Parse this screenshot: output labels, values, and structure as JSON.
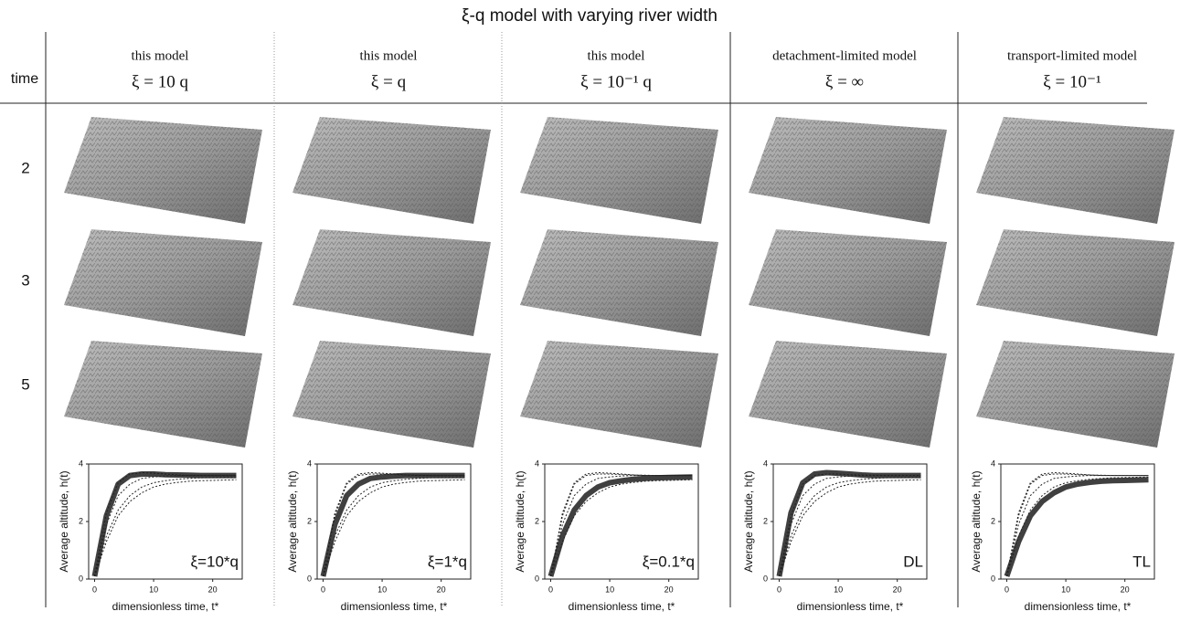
{
  "title": "ξ-q model with varying river width",
  "time_label": "time",
  "columns": [
    {
      "model": "this model",
      "xi": "ξ = 10 q"
    },
    {
      "model": "this model",
      "xi": "ξ = q"
    },
    {
      "model": "this model",
      "xi": "ξ = 10⁻¹ q"
    },
    {
      "model": "detachment-limited model",
      "xi": "ξ = ∞"
    },
    {
      "model": "transport-limited model",
      "xi": "ξ = 10⁻¹"
    }
  ],
  "rows": [
    "2",
    "3",
    "5"
  ],
  "chart_data": [
    {
      "type": "line",
      "xlabel": "dimensionless time, t*",
      "ylabel": "Average altitude, h(t)",
      "annotation": "ξ=10*q",
      "x": [
        0,
        2,
        4,
        6,
        8,
        10,
        12,
        14,
        16,
        18,
        20,
        22,
        24
      ],
      "xlim": [
        -1,
        25
      ],
      "xticks": [
        0,
        10,
        20
      ],
      "ylim": [
        0,
        4
      ],
      "yticks": [
        0,
        2,
        4
      ],
      "series": [
        {
          "color": "#404040",
          "width": 6,
          "style": "solid",
          "values": [
            0.1,
            2.2,
            3.3,
            3.6,
            3.65,
            3.65,
            3.63,
            3.62,
            3.61,
            3.6,
            3.6,
            3.6,
            3.6
          ]
        },
        {
          "color": "#222222",
          "width": 1,
          "style": "dotted",
          "values": [
            0.1,
            1.9,
            2.9,
            3.3,
            3.5,
            3.55,
            3.58,
            3.6,
            3.6,
            3.6,
            3.6,
            3.6,
            3.6
          ]
        },
        {
          "color": "#222222",
          "width": 1,
          "style": "dotted",
          "values": [
            0.1,
            1.5,
            2.4,
            2.9,
            3.2,
            3.35,
            3.42,
            3.47,
            3.5,
            3.52,
            3.53,
            3.54,
            3.55
          ]
        },
        {
          "color": "#222222",
          "width": 1,
          "style": "dotted",
          "values": [
            0.1,
            2.3,
            3.35,
            3.65,
            3.7,
            3.68,
            3.65,
            3.62,
            3.6,
            3.6,
            3.6,
            3.6,
            3.6
          ]
        },
        {
          "color": "#222222",
          "width": 1,
          "style": "dotted",
          "values": [
            0.1,
            1.3,
            2.2,
            2.7,
            3.0,
            3.2,
            3.3,
            3.36,
            3.4,
            3.42,
            3.43,
            3.44,
            3.45
          ]
        }
      ]
    },
    {
      "type": "line",
      "xlabel": "dimensionless time, t*",
      "ylabel": "Average altitude, h(t)",
      "annotation": "ξ=1*q",
      "x": [
        0,
        2,
        4,
        6,
        8,
        10,
        12,
        14,
        16,
        18,
        20,
        22,
        24
      ],
      "xlim": [
        -1,
        25
      ],
      "xticks": [
        0,
        10,
        20
      ],
      "ylim": [
        0,
        4
      ],
      "yticks": [
        0,
        2,
        4
      ],
      "series": [
        {
          "color": "#404040",
          "width": 6,
          "style": "solid",
          "values": [
            0.1,
            1.9,
            2.9,
            3.3,
            3.5,
            3.55,
            3.58,
            3.6,
            3.6,
            3.6,
            3.6,
            3.6,
            3.6
          ]
        },
        {
          "color": "#222222",
          "width": 1,
          "style": "dotted",
          "values": [
            0.1,
            2.2,
            3.3,
            3.6,
            3.65,
            3.65,
            3.63,
            3.62,
            3.61,
            3.6,
            3.6,
            3.6,
            3.6
          ]
        },
        {
          "color": "#222222",
          "width": 1,
          "style": "dotted",
          "values": [
            0.1,
            1.5,
            2.4,
            2.9,
            3.2,
            3.35,
            3.42,
            3.47,
            3.5,
            3.52,
            3.53,
            3.54,
            3.55
          ]
        },
        {
          "color": "#222222",
          "width": 1,
          "style": "dotted",
          "values": [
            0.1,
            2.3,
            3.35,
            3.65,
            3.7,
            3.68,
            3.65,
            3.62,
            3.6,
            3.6,
            3.6,
            3.6,
            3.6
          ]
        },
        {
          "color": "#222222",
          "width": 1,
          "style": "dotted",
          "values": [
            0.1,
            1.3,
            2.2,
            2.7,
            3.0,
            3.2,
            3.3,
            3.36,
            3.4,
            3.42,
            3.43,
            3.44,
            3.45
          ]
        }
      ]
    },
    {
      "type": "line",
      "xlabel": "dimensionless time, t*",
      "ylabel": "Average altitude, h(t)",
      "annotation": "ξ=0.1*q",
      "x": [
        0,
        2,
        4,
        6,
        8,
        10,
        12,
        14,
        16,
        18,
        20,
        22,
        24
      ],
      "xlim": [
        -1,
        25
      ],
      "xticks": [
        0,
        10,
        20
      ],
      "ylim": [
        0,
        4
      ],
      "yticks": [
        0,
        2,
        4
      ],
      "series": [
        {
          "color": "#404040",
          "width": 6,
          "style": "solid",
          "values": [
            0.1,
            1.5,
            2.4,
            2.9,
            3.2,
            3.35,
            3.42,
            3.47,
            3.5,
            3.52,
            3.53,
            3.54,
            3.55
          ]
        },
        {
          "color": "#222222",
          "width": 1,
          "style": "dotted",
          "values": [
            0.1,
            2.2,
            3.3,
            3.6,
            3.65,
            3.65,
            3.63,
            3.62,
            3.61,
            3.6,
            3.6,
            3.6,
            3.6
          ]
        },
        {
          "color": "#222222",
          "width": 1,
          "style": "dotted",
          "values": [
            0.1,
            1.9,
            2.9,
            3.3,
            3.5,
            3.55,
            3.58,
            3.6,
            3.6,
            3.6,
            3.6,
            3.6,
            3.6
          ]
        },
        {
          "color": "#222222",
          "width": 1,
          "style": "dotted",
          "values": [
            0.1,
            2.3,
            3.35,
            3.65,
            3.7,
            3.68,
            3.65,
            3.62,
            3.6,
            3.6,
            3.6,
            3.6,
            3.6
          ]
        },
        {
          "color": "#222222",
          "width": 1,
          "style": "dotted",
          "values": [
            0.1,
            1.3,
            2.2,
            2.7,
            3.0,
            3.2,
            3.3,
            3.36,
            3.4,
            3.42,
            3.43,
            3.44,
            3.45
          ]
        }
      ]
    },
    {
      "type": "line",
      "xlabel": "dimensionless time, t*",
      "ylabel": "Average altitude, h(t)",
      "annotation": "DL",
      "x": [
        0,
        2,
        4,
        6,
        8,
        10,
        12,
        14,
        16,
        18,
        20,
        22,
        24
      ],
      "xlim": [
        -1,
        25
      ],
      "xticks": [
        0,
        10,
        20
      ],
      "ylim": [
        0,
        4
      ],
      "yticks": [
        0,
        2,
        4
      ],
      "series": [
        {
          "color": "#404040",
          "width": 6,
          "style": "solid",
          "values": [
            0.1,
            2.3,
            3.35,
            3.65,
            3.7,
            3.68,
            3.65,
            3.62,
            3.6,
            3.6,
            3.6,
            3.6,
            3.6
          ]
        },
        {
          "color": "#222222",
          "width": 1,
          "style": "dotted",
          "values": [
            0.1,
            2.2,
            3.3,
            3.6,
            3.65,
            3.65,
            3.63,
            3.62,
            3.61,
            3.6,
            3.6,
            3.6,
            3.6
          ]
        },
        {
          "color": "#222222",
          "width": 1,
          "style": "dotted",
          "values": [
            0.1,
            1.9,
            2.9,
            3.3,
            3.5,
            3.55,
            3.58,
            3.6,
            3.6,
            3.6,
            3.6,
            3.6,
            3.6
          ]
        },
        {
          "color": "#222222",
          "width": 1,
          "style": "dotted",
          "values": [
            0.1,
            1.5,
            2.4,
            2.9,
            3.2,
            3.35,
            3.42,
            3.47,
            3.5,
            3.52,
            3.53,
            3.54,
            3.55
          ]
        },
        {
          "color": "#222222",
          "width": 1,
          "style": "dotted",
          "values": [
            0.1,
            1.3,
            2.2,
            2.7,
            3.0,
            3.2,
            3.3,
            3.36,
            3.4,
            3.42,
            3.43,
            3.44,
            3.45
          ]
        }
      ]
    },
    {
      "type": "line",
      "xlabel": "dimensionless time, t*",
      "ylabel": "Average altitude, h(t)",
      "annotation": "TL",
      "x": [
        0,
        2,
        4,
        6,
        8,
        10,
        12,
        14,
        16,
        18,
        20,
        22,
        24
      ],
      "xlim": [
        -1,
        25
      ],
      "xticks": [
        0,
        10,
        20
      ],
      "ylim": [
        0,
        4
      ],
      "yticks": [
        0,
        2,
        4
      ],
      "series": [
        {
          "color": "#404040",
          "width": 6,
          "style": "solid",
          "values": [
            0.1,
            1.3,
            2.2,
            2.7,
            3.0,
            3.2,
            3.3,
            3.36,
            3.4,
            3.42,
            3.43,
            3.44,
            3.45
          ]
        },
        {
          "color": "#222222",
          "width": 1,
          "style": "dotted",
          "values": [
            0.1,
            2.2,
            3.3,
            3.6,
            3.65,
            3.65,
            3.63,
            3.62,
            3.61,
            3.6,
            3.6,
            3.6,
            3.6
          ]
        },
        {
          "color": "#222222",
          "width": 1,
          "style": "dotted",
          "values": [
            0.1,
            1.9,
            2.9,
            3.3,
            3.5,
            3.55,
            3.58,
            3.6,
            3.6,
            3.6,
            3.6,
            3.6,
            3.6
          ]
        },
        {
          "color": "#222222",
          "width": 1,
          "style": "dotted",
          "values": [
            0.1,
            1.5,
            2.4,
            2.9,
            3.2,
            3.35,
            3.42,
            3.47,
            3.5,
            3.52,
            3.53,
            3.54,
            3.55
          ]
        },
        {
          "color": "#222222",
          "width": 1,
          "style": "dotted",
          "values": [
            0.1,
            2.3,
            3.35,
            3.65,
            3.7,
            3.68,
            3.65,
            3.62,
            3.6,
            3.6,
            3.6,
            3.6,
            3.6
          ]
        }
      ]
    }
  ]
}
